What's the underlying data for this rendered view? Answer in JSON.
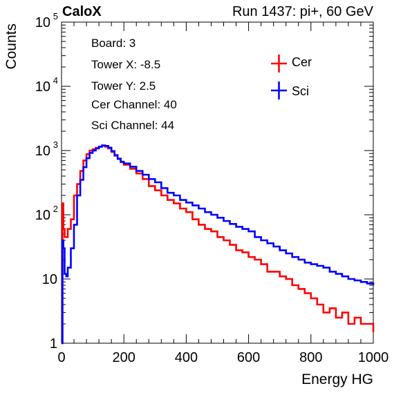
{
  "header": {
    "left": "CaloX",
    "right": "Run 1437: pi+, 60 GeV"
  },
  "info": {
    "lines": [
      "Board: 3",
      "Tower X: -8.5",
      "Tower Y: 2.5",
      "Cer Channel: 40",
      "Sci Channel: 44"
    ]
  },
  "chart_data": {
    "type": "line",
    "title": "",
    "xlabel": "Energy HG",
    "ylabel": "Counts",
    "xlim": [
      0,
      1000
    ],
    "ylim": [
      1,
      100000
    ],
    "yscale": "log",
    "grid": false,
    "legend_position": "top-right",
    "x_ticks": [
      "0",
      "200",
      "400",
      "600",
      "800",
      "1000"
    ],
    "y_ticks": [
      {
        "base": "1",
        "exp": ""
      },
      {
        "base": "10",
        "exp": ""
      },
      {
        "base": "10",
        "exp": "2"
      },
      {
        "base": "10",
        "exp": "3"
      },
      {
        "base": "10",
        "exp": "4"
      },
      {
        "base": "10",
        "exp": "5"
      }
    ],
    "series": [
      {
        "name": "Cer",
        "color": "#ff0000",
        "points": [
          [
            0,
            1
          ],
          [
            3,
            150
          ],
          [
            6,
            60
          ],
          [
            10,
            45
          ],
          [
            20,
            60
          ],
          [
            30,
            85
          ],
          [
            40,
            200
          ],
          [
            50,
            300
          ],
          [
            60,
            480
          ],
          [
            70,
            700
          ],
          [
            80,
            880
          ],
          [
            90,
            1000
          ],
          [
            100,
            1050
          ],
          [
            110,
            1100
          ],
          [
            120,
            1150
          ],
          [
            130,
            1190
          ],
          [
            140,
            1150
          ],
          [
            150,
            1080
          ],
          [
            160,
            950
          ],
          [
            170,
            830
          ],
          [
            180,
            750
          ],
          [
            190,
            660
          ],
          [
            200,
            600
          ],
          [
            220,
            520
          ],
          [
            240,
            440
          ],
          [
            260,
            360
          ],
          [
            280,
            280
          ],
          [
            300,
            240
          ],
          [
            320,
            200
          ],
          [
            340,
            170
          ],
          [
            360,
            150
          ],
          [
            380,
            125
          ],
          [
            400,
            110
          ],
          [
            420,
            85
          ],
          [
            440,
            70
          ],
          [
            460,
            60
          ],
          [
            480,
            55
          ],
          [
            500,
            45
          ],
          [
            520,
            40
          ],
          [
            540,
            34
          ],
          [
            560,
            28
          ],
          [
            580,
            26
          ],
          [
            600,
            22
          ],
          [
            620,
            20
          ],
          [
            640,
            17
          ],
          [
            660,
            13
          ],
          [
            680,
            13
          ],
          [
            700,
            11
          ],
          [
            720,
            10
          ],
          [
            740,
            8
          ],
          [
            760,
            7
          ],
          [
            780,
            6
          ],
          [
            800,
            5
          ],
          [
            820,
            4
          ],
          [
            840,
            3
          ],
          [
            860,
            3.5
          ],
          [
            880,
            2.5
          ],
          [
            900,
            3
          ],
          [
            920,
            2
          ],
          [
            940,
            2.5
          ],
          [
            960,
            2
          ],
          [
            980,
            2
          ],
          [
            1000,
            1.5
          ]
        ]
      },
      {
        "name": "Sci",
        "color": "#0000ff",
        "points": [
          [
            0,
            1
          ],
          [
            3,
            40
          ],
          [
            6,
            30
          ],
          [
            10,
            12
          ],
          [
            15,
            11
          ],
          [
            20,
            15
          ],
          [
            30,
            30
          ],
          [
            40,
            70
          ],
          [
            50,
            200
          ],
          [
            60,
            350
          ],
          [
            70,
            550
          ],
          [
            80,
            760
          ],
          [
            90,
            920
          ],
          [
            100,
            1000
          ],
          [
            110,
            1080
          ],
          [
            120,
            1150
          ],
          [
            130,
            1200
          ],
          [
            140,
            1180
          ],
          [
            150,
            1110
          ],
          [
            160,
            980
          ],
          [
            170,
            850
          ],
          [
            180,
            740
          ],
          [
            190,
            670
          ],
          [
            200,
            630
          ],
          [
            220,
            560
          ],
          [
            240,
            480
          ],
          [
            260,
            420
          ],
          [
            280,
            360
          ],
          [
            300,
            320
          ],
          [
            320,
            260
          ],
          [
            340,
            220
          ],
          [
            360,
            200
          ],
          [
            380,
            170
          ],
          [
            400,
            155
          ],
          [
            420,
            140
          ],
          [
            440,
            125
          ],
          [
            460,
            110
          ],
          [
            480,
            100
          ],
          [
            500,
            90
          ],
          [
            520,
            80
          ],
          [
            540,
            72
          ],
          [
            560,
            65
          ],
          [
            580,
            60
          ],
          [
            600,
            55
          ],
          [
            620,
            45
          ],
          [
            640,
            40
          ],
          [
            660,
            36
          ],
          [
            680,
            32
          ],
          [
            700,
            28
          ],
          [
            720,
            25
          ],
          [
            740,
            22
          ],
          [
            760,
            20
          ],
          [
            780,
            18
          ],
          [
            800,
            17
          ],
          [
            820,
            16
          ],
          [
            840,
            15
          ],
          [
            860,
            13
          ],
          [
            880,
            12
          ],
          [
            900,
            11
          ],
          [
            920,
            10
          ],
          [
            940,
            9.5
          ],
          [
            960,
            9
          ],
          [
            980,
            8.5
          ],
          [
            1000,
            8
          ]
        ]
      }
    ]
  }
}
